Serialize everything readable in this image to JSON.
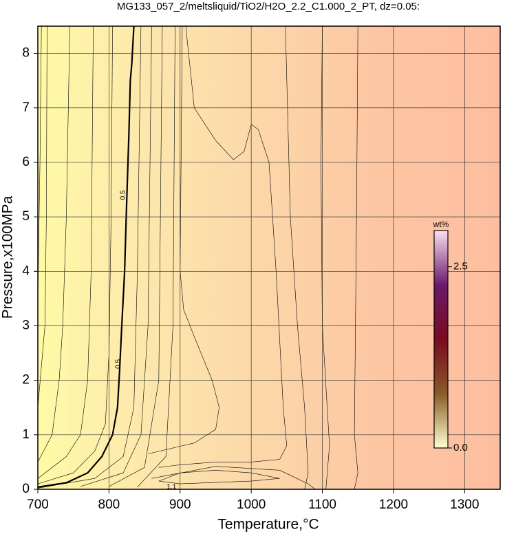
{
  "chart_data": {
    "type": "contour",
    "title": "MG133_057_2/meltsliquid/TiO2/H2O_2.2_C1.000_2_PT, dz=0.05:",
    "x_label": "Temperature,°C",
    "y_label": "Pressure,x100MPa",
    "xlim": [
      700,
      1350
    ],
    "ylim": [
      0,
      8.5
    ],
    "xticks": [
      700,
      800,
      900,
      1000,
      1100,
      1200,
      1300
    ],
    "yticks": [
      0,
      1,
      2,
      3,
      4,
      5,
      6,
      7,
      8
    ],
    "grid": true,
    "fill_colors": [
      "#fffaa6",
      "#fde6ad",
      "#fcd6a8",
      "#fdc5a2",
      "#fdbea0"
    ],
    "contours": [
      {
        "x": [
          700,
          703,
          705
        ],
        "y": [
          3.5,
          6,
          8.5
        ]
      },
      {
        "x": [
          700,
          710,
          712,
          713
        ],
        "y": [
          1.5,
          3,
          5,
          8.5
        ]
      },
      {
        "x": [
          700,
          720,
          730,
          735,
          740,
          745
        ],
        "y": [
          0.5,
          1.0,
          2,
          3,
          5,
          8.5
        ]
      },
      {
        "x": [
          700,
          740,
          760,
          770,
          775,
          778
        ],
        "y": [
          0.2,
          0.6,
          1.0,
          2,
          4,
          8.5
        ]
      },
      {
        "x": [
          700,
          750,
          780,
          795,
          800,
          803,
          805
        ],
        "y": [
          0.1,
          0.3,
          0.7,
          1.2,
          2.5,
          5,
          8.5
        ]
      },
      {
        "x": [
          700,
          740,
          770,
          790,
          805,
          812,
          815,
          818,
          822,
          825,
          828,
          830,
          832,
          835
        ],
        "y": [
          0.04,
          0.12,
          0.3,
          0.6,
          1.0,
          1.5,
          2.2,
          3,
          4,
          5.3,
          6.5,
          7.5,
          7.8,
          8.5
        ],
        "width": 2.2
      },
      {
        "x": [
          700,
          780,
          820,
          835,
          840,
          845
        ],
        "y": [
          0.02,
          0.2,
          0.6,
          1.5,
          4,
          8.5
        ]
      },
      {
        "x": [
          760,
          820,
          845,
          855,
          860
        ],
        "y": [
          0.05,
          0.3,
          1,
          3,
          8.5
        ]
      },
      {
        "x": [
          800,
          850,
          870,
          875
        ],
        "y": [
          0.05,
          0.4,
          2,
          8.5
        ]
      },
      {
        "x": [
          840,
          880,
          890,
          893
        ],
        "y": [
          0.04,
          0.6,
          3,
          8.5
        ]
      },
      {
        "x": [
          855,
          920,
          950,
          955,
          945,
          920,
          905,
          900,
          903
        ],
        "y": [
          0.65,
          0.85,
          1.1,
          1.5,
          2.0,
          2.8,
          3.3,
          4,
          8.5
        ]
      },
      {
        "x": [
          908,
          920,
          950,
          975,
          990,
          1000,
          1010,
          1025,
          1035,
          1045,
          1050,
          1040,
          1000,
          950,
          900,
          870
        ],
        "y": [
          8.5,
          7.0,
          6.4,
          6.05,
          6.2,
          6.7,
          6.6,
          6.0,
          4.0,
          1.5,
          0.8,
          0.55,
          0.5,
          0.5,
          0.45,
          0.4
        ]
      },
      {
        "x": [
          870,
          900,
          950,
          1000,
          1040,
          1000,
          900,
          870
        ],
        "y": [
          0.15,
          0.3,
          0.35,
          0.3,
          0.2,
          0.15,
          0.1,
          0.15
        ]
      },
      {
        "x": [
          860,
          950,
          1040,
          1080,
          1090
        ],
        "y": [
          0.2,
          0.42,
          0.35,
          0.1,
          0
        ]
      },
      {
        "x": [
          1075,
          1080,
          1075,
          1065,
          1055,
          1048
        ],
        "y": [
          0,
          0.3,
          1.5,
          3,
          5,
          8.5
        ]
      },
      {
        "x": [
          1105,
          1110,
          1100,
          1098,
          1100
        ],
        "y": [
          0,
          0.8,
          3,
          6,
          8.5
        ]
      },
      {
        "x": [
          1145,
          1150,
          1145,
          1148,
          1150
        ],
        "y": [
          0,
          0.3,
          1,
          5,
          8.5
        ]
      }
    ],
    "contour_labels": [
      {
        "text": "0.5",
        "x": 820,
        "y": 5.4
      },
      {
        "text": "0.5",
        "x": 813,
        "y": 2.3
      },
      {
        "text": "1.1",
        "x": 888,
        "y": 0.04
      }
    ],
    "colorbar": {
      "label": "wt%",
      "lim": [
        0,
        3
      ],
      "ticks": [
        {
          "value": 0,
          "label": "0.0"
        },
        2.5
      ],
      "colors": [
        "#ffffd0",
        "#8a5a2a",
        "#7a0a20",
        "#6a1a6a",
        "#fde0f0"
      ]
    }
  }
}
